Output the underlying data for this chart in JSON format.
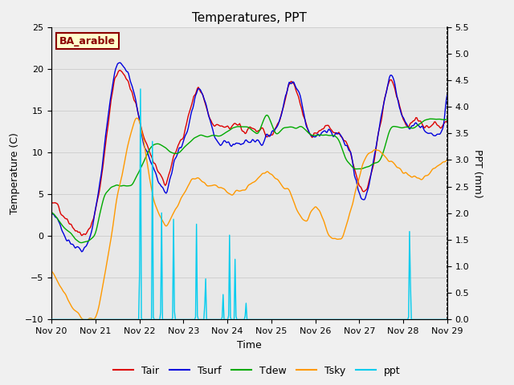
{
  "title": "Temperatures, PPT",
  "xlabel": "Time",
  "ylabel_left": "Temperature (C)",
  "ylabel_right": "PPT (mm)",
  "xlim": [
    0,
    9
  ],
  "ylim_left": [
    -10,
    25
  ],
  "ylim_right": [
    0.0,
    5.5
  ],
  "yticks_left": [
    -10,
    -5,
    0,
    5,
    10,
    15,
    20,
    25
  ],
  "yticks_right": [
    0.0,
    0.5,
    1.0,
    1.5,
    2.0,
    2.5,
    3.0,
    3.5,
    4.0,
    4.5,
    5.0,
    5.5
  ],
  "xtick_labels": [
    "Nov 20",
    "Nov 21",
    "Nov 22",
    "Nov 23",
    "Nov 24",
    "Nov 25",
    "Nov 26",
    "Nov 27",
    "Nov 28",
    "Nov 29"
  ],
  "xtick_positions": [
    0,
    1,
    2,
    3,
    4,
    5,
    6,
    7,
    8,
    9
  ],
  "grid_color": "#d0d0d0",
  "bg_color": "#e8e8e8",
  "fig_color": "#f0f0f0",
  "legend_items": [
    "Tair",
    "Tsurf",
    "Tdew",
    "Tsky",
    "ppt"
  ],
  "legend_colors": [
    "#dd0000",
    "#0000dd",
    "#00aa00",
    "#ff9900",
    "#00ccee"
  ],
  "label_box_text": "BA_arable",
  "label_box_fgcolor": "#8b0000",
  "label_box_bgcolor": "#ffffcc"
}
